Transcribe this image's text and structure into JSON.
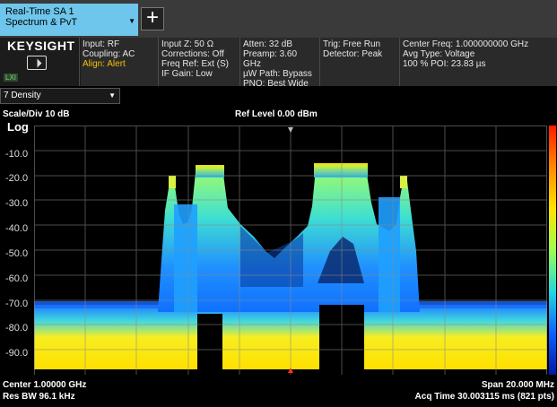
{
  "mode_tab": {
    "line1": "Real-Time SA 1",
    "line2": "Spectrum & PvT"
  },
  "add_button": "+",
  "brand": {
    "logo": "KEYSIGHT",
    "lxi": "LXI"
  },
  "info": {
    "col1": [
      "Input: RF",
      "Coupling: AC"
    ],
    "col1_alert": "Align: Alert",
    "col2": [
      "Input Z: 50 Ω",
      "Corrections: Off",
      "Freq Ref: Ext (S)",
      "IF Gain: Low"
    ],
    "col3": [
      "Atten: 32 dB",
      "Preamp: 3.60 GHz",
      "µW Path: Bypass",
      "PNO: Best Wide"
    ],
    "col4": [
      "Trig: Free Run",
      "Detector: Peak"
    ],
    "col5": [
      "Center Freq: 1.000000000 GHz",
      "Avg Type: Voltage",
      "100 % POI: 23.83 µs"
    ]
  },
  "view_select": {
    "value": "7 Density"
  },
  "plot": {
    "scale_label": "Scale/Div 10 dB",
    "ref_level": "Ref Level 0.00 dBm",
    "log_label": "Log",
    "y_ticks": [
      "-10.0",
      "-20.0",
      "-30.0",
      "-40.0",
      "-50.0",
      "-60.0",
      "-70.0",
      "-80.0",
      "-90.0"
    ]
  },
  "footer": {
    "center": "Center 1.00000 GHz",
    "res_bw": "Res BW 96.1 kHz",
    "span": "Span 20.000 MHz",
    "acq_time": "Acq Time 30.003115 ms (821 pts)"
  },
  "colors": {
    "tab": "#6ec6ec",
    "alert": "#f2c200",
    "grid": "#8a8a8a"
  }
}
